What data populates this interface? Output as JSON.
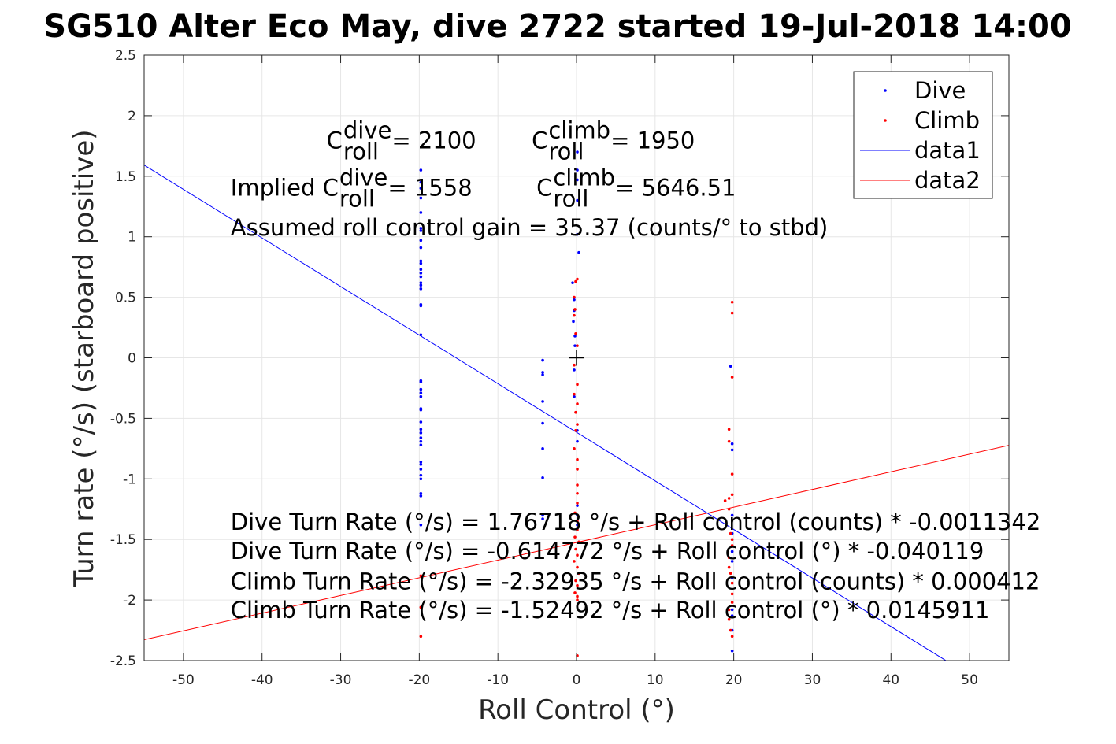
{
  "chart_data": {
    "type": "scatter",
    "title": "SG510 Alter Eco May, dive 2722 started 19-Jul-2018 14:00",
    "xlabel": "Roll Control (°)",
    "ylabel": "Turn rate (°/s) (starboard positive)",
    "xlim": [
      -55,
      55
    ],
    "ylim": [
      -2.5,
      2.5
    ],
    "xticks": [
      -50,
      -40,
      -30,
      -20,
      -10,
      0,
      10,
      20,
      30,
      40,
      50
    ],
    "yticks": [
      -2.5,
      -2,
      -1.5,
      -1,
      -0.5,
      0,
      0.5,
      1,
      1.5,
      2,
      2.5
    ],
    "grid": true,
    "legend_position": "top-right",
    "colors": {
      "dive": "#0000ff",
      "climb": "#ff0000",
      "axes": "#262626",
      "grid": "#e6e6e6"
    },
    "series": [
      {
        "name": "Dive",
        "kind": "points",
        "color": "#0000ff",
        "points": [
          [
            -19.8,
            1.55
          ],
          [
            -19.8,
            1.45
          ],
          [
            -19.8,
            1.4
          ],
          [
            -19.8,
            1.32
          ],
          [
            -19.8,
            1.2
          ],
          [
            -19.8,
            1.07
          ],
          [
            -19.8,
            1.05
          ],
          [
            -19.8,
            0.97
          ],
          [
            -19.8,
            0.91
          ],
          [
            -19.8,
            0.8
          ],
          [
            -19.8,
            0.78
          ],
          [
            -19.8,
            0.73
          ],
          [
            -19.8,
            0.7
          ],
          [
            -19.8,
            0.67
          ],
          [
            -19.8,
            0.62
          ],
          [
            -19.8,
            0.6
          ],
          [
            -19.8,
            0.57
          ],
          [
            -19.8,
            0.44
          ],
          [
            -19.8,
            0.43
          ],
          [
            -19.8,
            0.19
          ],
          [
            -19.8,
            -0.19
          ],
          [
            -19.8,
            -0.2
          ],
          [
            -19.8,
            -0.26
          ],
          [
            -19.8,
            -0.29
          ],
          [
            -19.8,
            -0.32
          ],
          [
            -19.8,
            -0.42
          ],
          [
            -19.8,
            -0.43
          ],
          [
            -19.8,
            -0.53
          ],
          [
            -19.8,
            -0.59
          ],
          [
            -19.8,
            -0.62
          ],
          [
            -19.8,
            -0.66
          ],
          [
            -19.8,
            -0.69
          ],
          [
            -19.8,
            -0.72
          ],
          [
            -19.8,
            -0.86
          ],
          [
            -19.8,
            -0.88
          ],
          [
            -19.8,
            -0.92
          ],
          [
            -19.8,
            -0.97
          ],
          [
            -19.8,
            -1.0
          ],
          [
            -19.8,
            -1.12
          ],
          [
            -19.8,
            -1.14
          ],
          [
            -19.8,
            -1.38
          ],
          [
            -4.3,
            -0.02
          ],
          [
            -4.3,
            -0.12
          ],
          [
            -4.3,
            -0.14
          ],
          [
            -4.3,
            -0.36
          ],
          [
            -4.3,
            -0.54
          ],
          [
            -4.3,
            -0.75
          ],
          [
            -4.3,
            -0.99
          ],
          [
            -4.3,
            -1.3
          ],
          [
            -4.3,
            -1.33
          ],
          [
            0.1,
            1.7
          ],
          [
            0.1,
            1.55
          ],
          [
            0.1,
            1.47
          ],
          [
            0.1,
            1.3
          ],
          [
            0.1,
            1.02
          ],
          [
            0.3,
            0.87
          ],
          [
            -0.5,
            0.62
          ],
          [
            -0.3,
            0.48
          ],
          [
            -0.3,
            0.39
          ],
          [
            -0.4,
            0.3
          ],
          [
            -0.2,
            0.18
          ],
          [
            -0.2,
            0.1
          ],
          [
            -0.3,
            -0.1
          ],
          [
            -0.3,
            -0.32
          ],
          [
            0.1,
            -0.6
          ],
          [
            0.1,
            -0.69
          ],
          [
            0.1,
            -1.22
          ],
          [
            0.1,
            -1.3
          ],
          [
            0.1,
            -1.38
          ],
          [
            19.6,
            -0.07
          ],
          [
            19.8,
            -0.71
          ],
          [
            19.8,
            -0.76
          ],
          [
            19.8,
            -1.3
          ],
          [
            19.8,
            -1.45
          ],
          [
            19.8,
            -1.6
          ],
          [
            19.8,
            -1.68
          ],
          [
            19.8,
            -1.82
          ],
          [
            19.8,
            -2.08
          ],
          [
            19.8,
            -2.13
          ],
          [
            19.8,
            -2.25
          ],
          [
            19.8,
            -2.42
          ]
        ]
      },
      {
        "name": "Climb",
        "kind": "points",
        "color": "#ff0000",
        "points": [
          [
            19.8,
            0.46
          ],
          [
            19.8,
            0.37
          ],
          [
            19.8,
            -0.16
          ],
          [
            19.4,
            -0.59
          ],
          [
            19.4,
            -0.69
          ],
          [
            19.8,
            -0.96
          ],
          [
            19.8,
            -1.13
          ],
          [
            18.9,
            -1.18
          ],
          [
            19.4,
            -1.16
          ],
          [
            19.4,
            -1.25
          ],
          [
            19.6,
            -1.45
          ],
          [
            19.8,
            -1.5
          ],
          [
            19.8,
            -1.55
          ],
          [
            19.4,
            -1.65
          ],
          [
            19.4,
            -1.73
          ],
          [
            19.6,
            -1.78
          ],
          [
            19.8,
            -1.86
          ],
          [
            19.8,
            -1.95
          ],
          [
            19.8,
            -2.02
          ],
          [
            19.4,
            -2.08
          ],
          [
            19.4,
            -2.16
          ],
          [
            19.6,
            -2.25
          ],
          [
            19.8,
            -2.3
          ],
          [
            0.1,
            0.65
          ],
          [
            -0.1,
            0.63
          ],
          [
            -0.3,
            0.5
          ],
          [
            -0.2,
            0.4
          ],
          [
            -0.3,
            0.35
          ],
          [
            -0.1,
            0.2
          ],
          [
            0.1,
            0.1
          ],
          [
            -0.3,
            -0.06
          ],
          [
            0.1,
            -0.22
          ],
          [
            -0.3,
            -0.3
          ],
          [
            0.1,
            -0.38
          ],
          [
            -0.1,
            -0.45
          ],
          [
            0.1,
            -0.55
          ],
          [
            -0.1,
            -0.6
          ],
          [
            -0.3,
            -0.75
          ],
          [
            0.1,
            -0.84
          ],
          [
            0.1,
            -0.92
          ],
          [
            0.1,
            -1.05
          ],
          [
            0.1,
            -1.12
          ],
          [
            0.1,
            -1.2
          ],
          [
            -0.2,
            -1.28
          ],
          [
            0.1,
            -1.35
          ],
          [
            0.1,
            -1.42
          ],
          [
            -0.2,
            -1.48
          ],
          [
            0.3,
            -1.52
          ],
          [
            -0.1,
            -1.58
          ],
          [
            0.1,
            -1.63
          ],
          [
            -0.3,
            -1.68
          ],
          [
            0.1,
            -1.73
          ],
          [
            0.3,
            -1.78
          ],
          [
            -0.1,
            -1.84
          ],
          [
            0.1,
            -1.88
          ],
          [
            -0.2,
            -1.94
          ],
          [
            0.1,
            -1.97
          ],
          [
            0.1,
            -2.0
          ],
          [
            0.1,
            -2.46
          ],
          [
            -19.8,
            -1.8
          ],
          [
            -19.8,
            -2.06
          ],
          [
            -19.8,
            -2.3
          ]
        ]
      },
      {
        "name": "data1",
        "kind": "line",
        "color": "#0000ff",
        "x": [
          -55,
          55
        ],
        "y": [
          1.5917,
          -2.8213
        ]
      },
      {
        "name": "data2",
        "kind": "line",
        "color": "#ff0000",
        "x": [
          -55,
          55
        ],
        "y": [
          -2.3274,
          -0.7225
        ]
      }
    ],
    "reference_marker": {
      "symbol": "+",
      "x": 0,
      "y": 0,
      "color": "#000000"
    },
    "annotations": [
      {
        "id": "cdive",
        "base": "C",
        "sup": "dive",
        "sub": "roll",
        "value": " = 2100",
        "x": -31.8,
        "y": 1.73
      },
      {
        "id": "cclimb",
        "base": "C",
        "sup": "climb",
        "sub": "roll",
        "value": " = 1950",
        "x": -5.7,
        "y": 1.73
      },
      {
        "id": "implied_dive",
        "prefix": "Implied ",
        "base": "C",
        "sup": "dive",
        "sub": "roll",
        "value": " = 1558",
        "x": -44,
        "y": 1.34
      },
      {
        "id": "implied_climb",
        "base": "C",
        "sup": "climb",
        "sub": "roll",
        "value": " = 5646.51",
        "x": -5.1,
        "y": 1.34
      },
      {
        "id": "gain",
        "text": "Assumed roll control gain = 35.37 (counts/° to stbd)",
        "x": -44,
        "y": 1.01
      },
      {
        "id": "fit1",
        "text": "Dive Turn Rate (°/s) = 1.76718 °/s + Roll control (counts) * -0.0011342",
        "x": -44,
        "y": -1.42
      },
      {
        "id": "fit2",
        "text": "Dive Turn Rate (°/s) = -0.614772 °/s + Roll control (°) * -0.040119",
        "x": -44,
        "y": -1.66
      },
      {
        "id": "fit3",
        "text": "Climb Turn Rate (°/s) = -2.32935 °/s + Roll control (counts) * 0.000412",
        "x": -44,
        "y": -1.91
      },
      {
        "id": "fit4",
        "text": "Climb Turn Rate (°/s) = -1.52492 °/s + Roll control (°) * 0.0145911",
        "x": -44,
        "y": -2.15
      }
    ]
  }
}
